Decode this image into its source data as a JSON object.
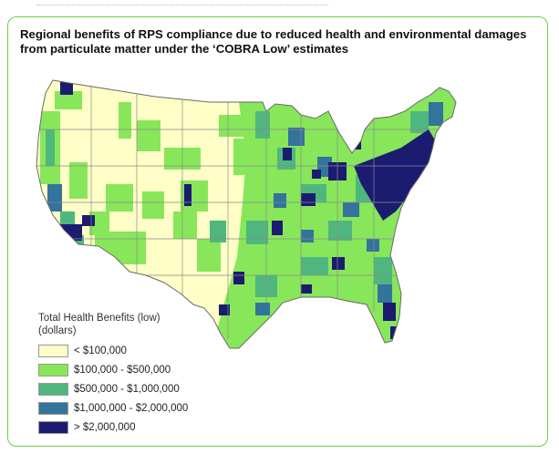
{
  "title": "Regional benefits of RPS compliance due to reduced health and environmental damages from particulate matter under the ‘COBRA Low’ estimates",
  "legend": {
    "title_line1": "Total Health Benefits (low)",
    "title_line2": "(dollars)",
    "items": [
      {
        "label": "< $100,000",
        "color": "#fefec6"
      },
      {
        "label": "$100,000 - $500,000",
        "color": "#88e65a"
      },
      {
        "label": "$500,000 - $1,000,000",
        "color": "#4fb77e"
      },
      {
        "label": "$1,000,000 - $2,000,000",
        "color": "#33739c"
      },
      {
        "label": "> $2,000,000",
        "color": "#1b1c70"
      }
    ]
  },
  "colors": {
    "border": "#6fcf4a",
    "state_lines": "#8a8a8a"
  }
}
